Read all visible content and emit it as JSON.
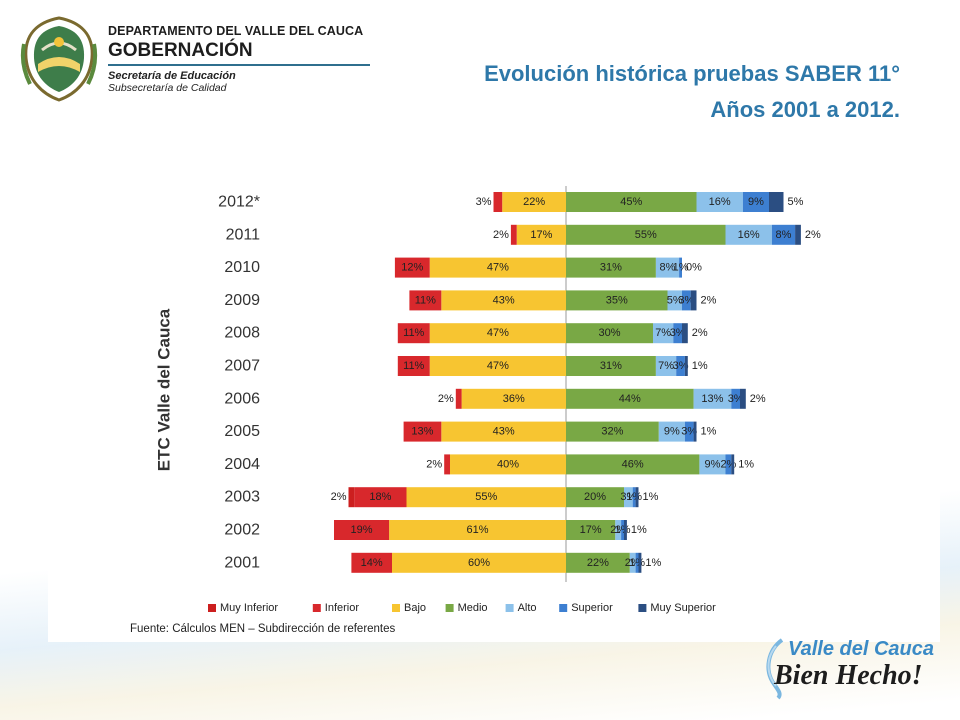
{
  "header": {
    "department": "DEPARTAMENTO DEL VALLE DEL CAUCA",
    "government": "GOBERNACIÓN",
    "secretariat": "Secretaría de Educación",
    "subsecretariat": "Subsecretaría de Calidad",
    "logo_icon": "valle-del-cauca-coat-of-arms-icon"
  },
  "title": {
    "line1": "Evolución histórica pruebas SABER 11°",
    "line2": "Años 2001 a 2012."
  },
  "footer": {
    "brand_line1": "Valle del Cauca",
    "brand_line2": "Bien Hecho!",
    "logo_icon": "valle-del-cauca-swoosh-icon"
  },
  "colors": {
    "title": "#2e78a9",
    "muy_inferior": "#cc1f1f",
    "inferior": "#d8282c",
    "bajo": "#f7c531",
    "medio": "#79a845",
    "alto": "#8cc1ea",
    "superior": "#3d7fd1",
    "muy_superior": "#2b4e82"
  },
  "chart_data": {
    "type": "bar",
    "orientation": "horizontal",
    "stacking": "diverging",
    "ylabel": "ETC Valle del Cauca",
    "source": "Fuente: Cálculos MEN – Subdirección de referentes",
    "categories": [
      "2012*",
      "2011",
      "2010",
      "2009",
      "2008",
      "2007",
      "2006",
      "2005",
      "2004",
      "2003",
      "2002",
      "2001"
    ],
    "series": [
      {
        "name": "Muy Inferior",
        "side": "negative",
        "values": [
          null,
          null,
          null,
          null,
          null,
          null,
          null,
          null,
          null,
          2,
          null,
          null
        ]
      },
      {
        "name": "Inferior",
        "side": "negative",
        "values": [
          3,
          2,
          12,
          11,
          11,
          11,
          2,
          13,
          2,
          18,
          19,
          14
        ]
      },
      {
        "name": "Bajo",
        "side": "negative",
        "values": [
          22,
          17,
          47,
          43,
          47,
          47,
          36,
          43,
          40,
          55,
          61,
          60
        ]
      },
      {
        "name": "Medio",
        "side": "positive",
        "values": [
          45,
          55,
          31,
          35,
          30,
          31,
          44,
          32,
          46,
          20,
          17,
          22
        ]
      },
      {
        "name": "Alto",
        "side": "positive",
        "values": [
          16,
          16,
          8,
          5,
          7,
          7,
          13,
          9,
          9,
          3,
          2,
          2
        ]
      },
      {
        "name": "Superior",
        "side": "positive",
        "values": [
          9,
          8,
          1,
          3,
          3,
          3,
          3,
          3,
          2,
          1,
          1,
          1
        ]
      },
      {
        "name": "Muy Superior",
        "side": "positive",
        "values": [
          5,
          2,
          0,
          2,
          2,
          1,
          2,
          1,
          1,
          1,
          1,
          1
        ]
      }
    ],
    "labels": [
      {
        "Muy Inferior": "",
        "Inferior": "3%",
        "Bajo": "22%",
        "Medio": "45%",
        "Alto": "16%",
        "Superior": "9%",
        "Muy Superior": "5%"
      },
      {
        "Muy Inferior": "",
        "Inferior": "2%",
        "Bajo": "17%",
        "Medio": "55%",
        "Alto": "16%",
        "Superior": "8%",
        "Muy Superior": "2%"
      },
      {
        "Muy Inferior": "",
        "Inferior": "12%",
        "Bajo": "47%",
        "Medio": "31%",
        "Alto": "8%",
        "Superior": "1%",
        "Muy Superior": "0%"
      },
      {
        "Muy Inferior": "",
        "Inferior": "11%",
        "Bajo": "43%",
        "Medio": "35%",
        "Alto": "5%",
        "Superior": "3%",
        "Muy Superior": "2%"
      },
      {
        "Muy Inferior": "",
        "Inferior": "11%",
        "Bajo": "47%",
        "Medio": "30%",
        "Alto": "7%",
        "Superior": "3%",
        "Muy Superior": "2%"
      },
      {
        "Muy Inferior": "",
        "Inferior": "11%",
        "Bajo": "47%",
        "Medio": "31%",
        "Alto": "7%",
        "Superior": "3%",
        "Muy Superior": "1%"
      },
      {
        "Muy Inferior": "",
        "Inferior": "2%",
        "Bajo": "36%",
        "Medio": "44%",
        "Alto": "13%",
        "Superior": "3%",
        "Muy Superior": "2%"
      },
      {
        "Muy Inferior": "",
        "Inferior": "13%",
        "Bajo": "43%",
        "Medio": "32%",
        "Alto": "9%",
        "Superior": "3%",
        "Muy Superior": "1%"
      },
      {
        "Muy Inferior": "",
        "Inferior": "2%",
        "Bajo": "40%",
        "Medio": "46%",
        "Alto": "9%",
        "Superior": "2%",
        "Muy Superior": "1%"
      },
      {
        "Muy Inferior": "2%",
        "Inferior": "18%",
        "Bajo": "55%",
        "Medio": "20%",
        "Alto": "3%",
        "Superior": "1%",
        "Muy Superior": "1%"
      },
      {
        "Muy Inferior": "",
        "Inferior": "19%",
        "Bajo": "61%",
        "Medio": "17%",
        "Alto": "2%",
        "Superior": "1%",
        "Muy Superior": "1%"
      },
      {
        "Muy Inferior": "",
        "Inferior": "14%",
        "Bajo": "60%",
        "Medio": "22%",
        "Alto": "2%",
        "Superior": "1%",
        "Muy Superior": "1%"
      }
    ],
    "legend": [
      "Muy Inferior",
      "Inferior",
      "Bajo",
      "Medio",
      "Alto",
      "Superior",
      "Muy Superior"
    ],
    "legend_position": "bottom",
    "grid": false
  }
}
